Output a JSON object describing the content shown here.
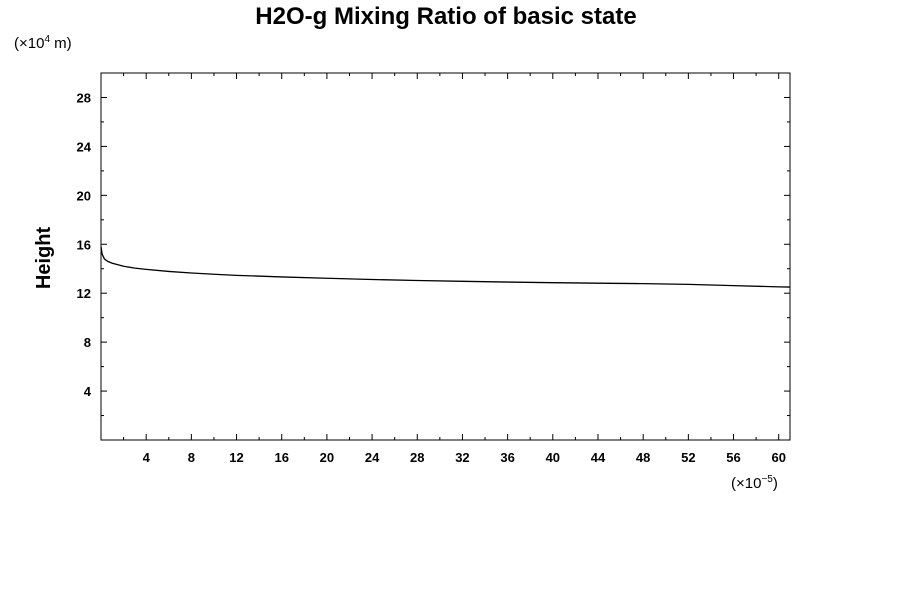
{
  "chart_data": {
    "type": "line",
    "title": "H2O-g Mixing Ratio of basic state",
    "xlabel": "",
    "ylabel": "Height",
    "x_unit": {
      "prefix": "(×10",
      "exponent": "−5",
      "suffix": ")"
    },
    "y_unit": {
      "prefix": "(×10",
      "exponent": "4",
      "suffix": " m)"
    },
    "xlim": [
      0,
      61
    ],
    "ylim": [
      0,
      30
    ],
    "x_ticks": [
      4,
      8,
      12,
      16,
      20,
      24,
      28,
      32,
      36,
      40,
      44,
      48,
      52,
      56,
      60
    ],
    "y_ticks": [
      4,
      8,
      12,
      16,
      20,
      24,
      28
    ],
    "grid": false,
    "series": [
      {
        "color": "#000000",
        "x": [
          0.0,
          0.1,
          0.3,
          0.6,
          1.0,
          2.0,
          3.0,
          4.0,
          6.0,
          8.0,
          10.0,
          12.0,
          16.0,
          20.0,
          24.0,
          28.0,
          32.0,
          36.0,
          40.0,
          44.0,
          48.0,
          52.0,
          56.0,
          60.0,
          61.0
        ],
        "y": [
          15.8,
          15.2,
          14.8,
          14.6,
          14.45,
          14.2,
          14.05,
          13.95,
          13.78,
          13.65,
          13.55,
          13.46,
          13.33,
          13.22,
          13.12,
          13.04,
          12.97,
          12.91,
          12.86,
          12.82,
          12.78,
          12.72,
          12.62,
          12.52,
          12.5
        ]
      }
    ]
  }
}
